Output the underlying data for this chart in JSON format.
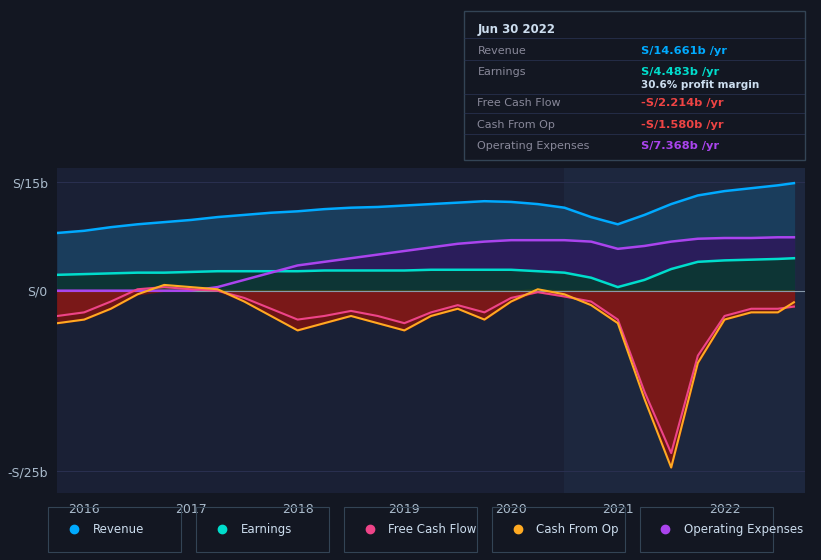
{
  "bg_color": "#131722",
  "plot_bg_color": "#1a2035",
  "highlight_bg": "#1e2840",
  "ylim": [
    -28,
    17
  ],
  "xlim": [
    2015.75,
    2022.75
  ],
  "yticks": [
    -25,
    0,
    15
  ],
  "ytick_labels": [
    "-S/25b",
    "S/0",
    "S/15b"
  ],
  "xticks": [
    2016,
    2017,
    2018,
    2019,
    2020,
    2021,
    2022
  ],
  "grid_color": "#2a3050",
  "zero_line_color": "#8899aa",
  "highlight_start": 2020.5,
  "highlight_end": 2022.75,
  "legend_items": [
    {
      "label": "Revenue",
      "color": "#00aaff"
    },
    {
      "label": "Earnings",
      "color": "#00ddcc"
    },
    {
      "label": "Free Cash Flow",
      "color": "#ee4488"
    },
    {
      "label": "Cash From Op",
      "color": "#ffaa22"
    },
    {
      "label": "Operating Expenses",
      "color": "#aa44ee"
    }
  ],
  "info_box": {
    "date": "Jun 30 2022",
    "revenue_label": "Revenue",
    "revenue_val": "S/14.661b /yr",
    "revenue_color": "#00aaff",
    "earnings_label": "Earnings",
    "earnings_val": "S/4.483b /yr",
    "earnings_color": "#00ddcc",
    "profit_margin": "30.6% profit margin",
    "fcf_label": "Free Cash Flow",
    "fcf_val": "-S/2.214b /yr",
    "fcf_color": "#ee4444",
    "cfo_label": "Cash From Op",
    "cfo_val": "-S/1.580b /yr",
    "cfo_color": "#ee4444",
    "opex_label": "Operating Expenses",
    "opex_val": "S/7.368b /yr",
    "opex_color": "#aa44ee"
  },
  "series": {
    "x": [
      2015.75,
      2016.0,
      2016.25,
      2016.5,
      2016.75,
      2017.0,
      2017.25,
      2017.5,
      2017.75,
      2018.0,
      2018.25,
      2018.5,
      2018.75,
      2019.0,
      2019.25,
      2019.5,
      2019.75,
      2020.0,
      2020.25,
      2020.5,
      2020.75,
      2021.0,
      2021.25,
      2021.5,
      2021.75,
      2022.0,
      2022.25,
      2022.5,
      2022.65
    ],
    "revenue": [
      8.0,
      8.3,
      8.8,
      9.2,
      9.5,
      9.8,
      10.2,
      10.5,
      10.8,
      11.0,
      11.3,
      11.5,
      11.6,
      11.8,
      12.0,
      12.2,
      12.4,
      12.3,
      12.0,
      11.5,
      10.2,
      9.2,
      10.5,
      12.0,
      13.2,
      13.8,
      14.2,
      14.6,
      14.9
    ],
    "earnings": [
      2.2,
      2.3,
      2.4,
      2.5,
      2.5,
      2.6,
      2.7,
      2.7,
      2.7,
      2.7,
      2.8,
      2.8,
      2.8,
      2.8,
      2.9,
      2.9,
      2.9,
      2.9,
      2.7,
      2.5,
      1.8,
      0.5,
      1.5,
      3.0,
      4.0,
      4.2,
      4.3,
      4.4,
      4.5
    ],
    "free_cash_flow": [
      -3.5,
      -3.0,
      -1.5,
      0.2,
      0.5,
      0.2,
      0.0,
      -1.0,
      -2.5,
      -4.0,
      -3.5,
      -2.8,
      -3.5,
      -4.5,
      -3.0,
      -2.0,
      -3.0,
      -1.0,
      -0.2,
      -0.8,
      -1.5,
      -4.0,
      -14.0,
      -22.5,
      -9.0,
      -3.5,
      -2.5,
      -2.5,
      -2.2
    ],
    "cash_from_op": [
      -4.5,
      -4.0,
      -2.5,
      -0.5,
      0.8,
      0.5,
      0.2,
      -1.5,
      -3.5,
      -5.5,
      -4.5,
      -3.5,
      -4.5,
      -5.5,
      -3.5,
      -2.5,
      -4.0,
      -1.5,
      0.2,
      -0.5,
      -2.0,
      -4.5,
      -15.0,
      -24.5,
      -10.0,
      -4.0,
      -3.0,
      -3.0,
      -1.6
    ],
    "op_expenses": [
      0.0,
      0.0,
      0.0,
      0.0,
      0.0,
      0.0,
      0.5,
      1.5,
      2.5,
      3.5,
      4.0,
      4.5,
      5.0,
      5.5,
      6.0,
      6.5,
      6.8,
      7.0,
      7.0,
      7.0,
      6.8,
      5.8,
      6.2,
      6.8,
      7.2,
      7.3,
      7.3,
      7.4,
      7.4
    ]
  }
}
